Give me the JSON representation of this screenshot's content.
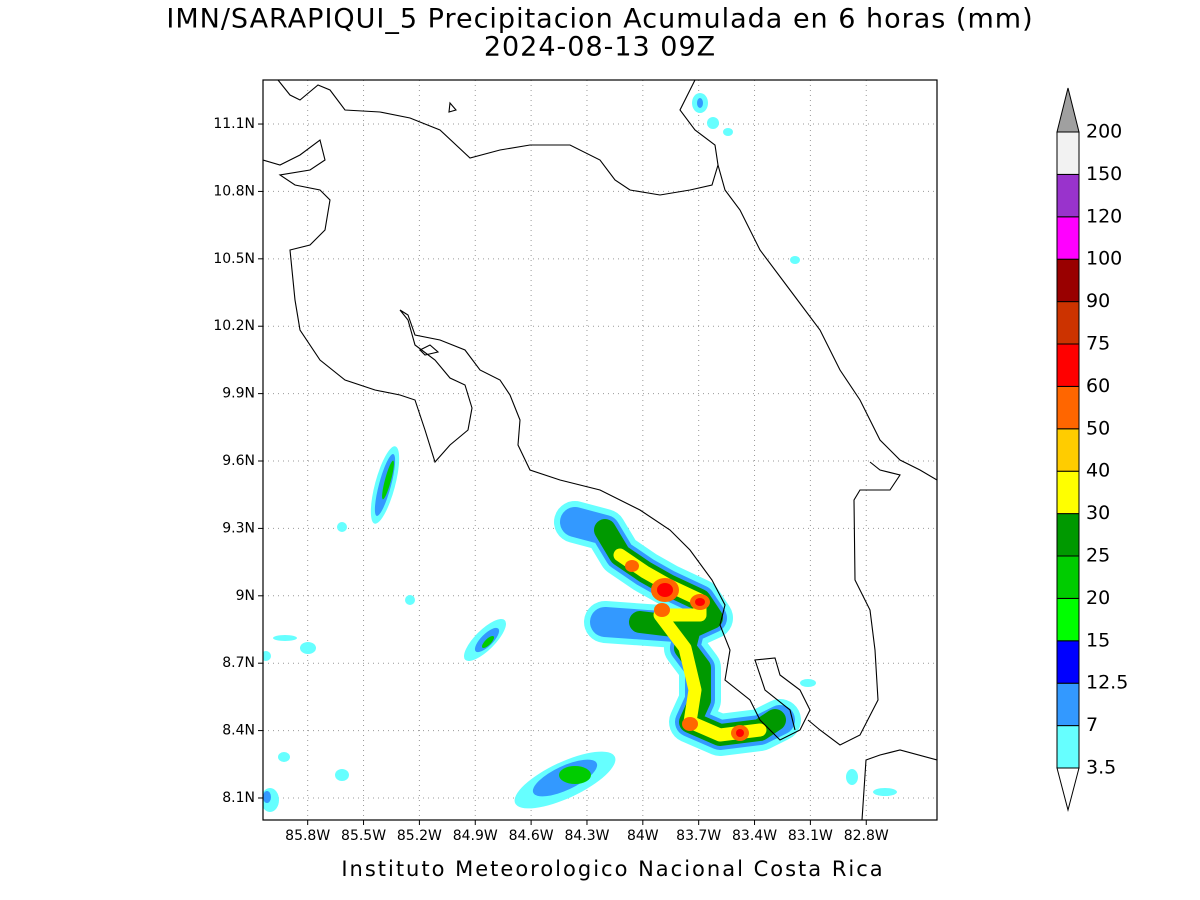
{
  "map": {
    "title": "IMN/SARAPIQUI_5 Precipitacion Acumulada en 6 horas (mm)",
    "subtitle": "2024-08-13 09Z",
    "xlim": [
      -86.04,
      -82.42
    ],
    "ylim": [
      8.002,
      11.296
    ],
    "xticks": [
      {
        "value": -85.8,
        "label": "85.8W"
      },
      {
        "value": -85.5,
        "label": "85.5W"
      },
      {
        "value": -85.2,
        "label": "85.2W"
      },
      {
        "value": -84.9,
        "label": "84.9W"
      },
      {
        "value": -84.6,
        "label": "84.6W"
      },
      {
        "value": -84.3,
        "label": "84.3W"
      },
      {
        "value": -84.0,
        "label": "84W"
      },
      {
        "value": -83.7,
        "label": "83.7W"
      },
      {
        "value": -83.4,
        "label": "83.4W"
      },
      {
        "value": -83.1,
        "label": "83.1W"
      },
      {
        "value": -82.8,
        "label": "82.8W"
      }
    ],
    "yticks": [
      {
        "value": 8.1,
        "label": "8.1N"
      },
      {
        "value": 8.4,
        "label": "8.4N"
      },
      {
        "value": 8.7,
        "label": "8.7N"
      },
      {
        "value": 9.0,
        "label": "9N"
      },
      {
        "value": 9.3,
        "label": "9.3N"
      },
      {
        "value": 9.6,
        "label": "9.6N"
      },
      {
        "value": 9.9,
        "label": "9.9N"
      },
      {
        "value": 10.2,
        "label": "10.2N"
      },
      {
        "value": 10.5,
        "label": "10.5N"
      },
      {
        "value": 10.8,
        "label": "10.8N"
      },
      {
        "value": 11.1,
        "label": "11.1N"
      }
    ],
    "grid": true,
    "colorbar": {
      "levels": [
        3.5,
        7,
        12.5,
        15,
        20,
        25,
        30,
        40,
        50,
        60,
        75,
        90,
        100,
        120,
        150,
        200
      ],
      "colors": [
        "#ffffff",
        "#66ffff",
        "#3399ff",
        "#0000ff",
        "#00ff00",
        "#00cc00",
        "#009900",
        "#ffff00",
        "#ffcc00",
        "#ff6600",
        "#ff0000",
        "#cc3300",
        "#990000",
        "#ff00ff",
        "#9933cc",
        "#f2f2f2",
        "#a0a0a0"
      ]
    },
    "credit": "Instituto Meteorologico Nacional Costa Rica"
  }
}
